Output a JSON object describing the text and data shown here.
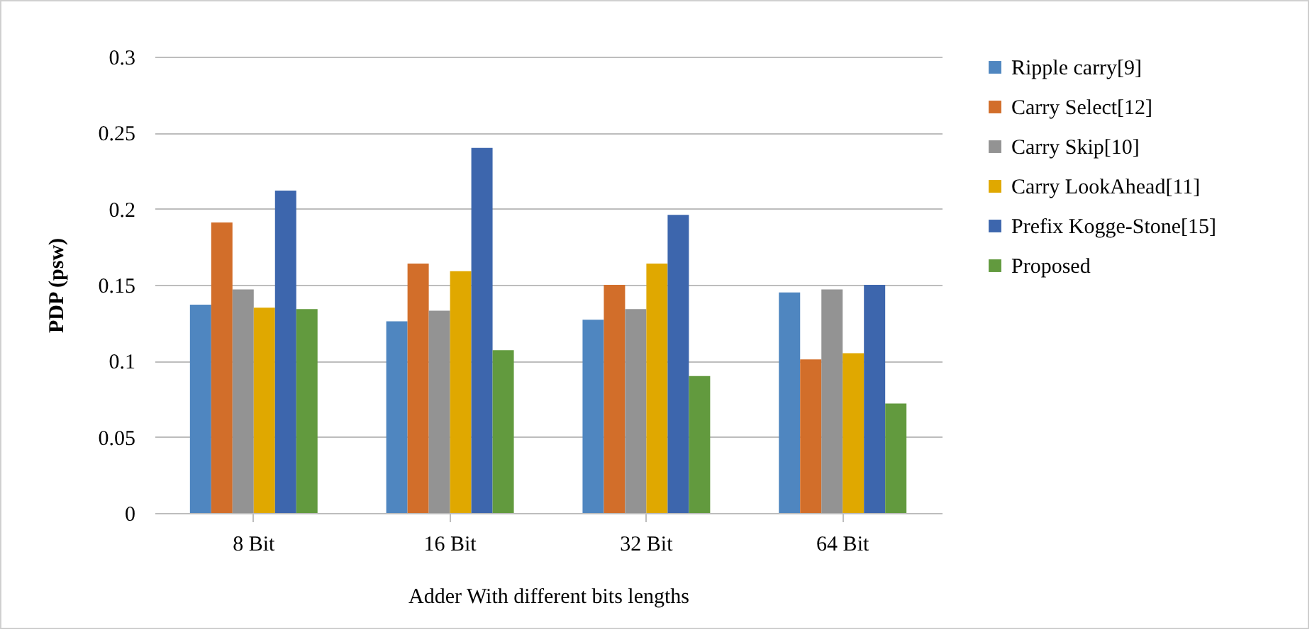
{
  "chart_data": {
    "type": "bar",
    "xlabel": "Adder With different bits lengths",
    "ylabel": "PDP (psw)",
    "categories": [
      "8 Bit",
      "16 Bit",
      "32 Bit",
      "64 Bit"
    ],
    "series": [
      {
        "name": "Ripple carry[9]",
        "color": "#4f86c0",
        "values": [
          0.137,
          0.126,
          0.127,
          0.145
        ]
      },
      {
        "name": "Carry Select[12]",
        "color": "#d26e2a",
        "values": [
          0.191,
          0.164,
          0.15,
          0.101
        ]
      },
      {
        "name": "Carry Skip[10]",
        "color": "#939393",
        "values": [
          0.147,
          0.133,
          0.134,
          0.147
        ]
      },
      {
        "name": "Carry LookAhead[11]",
        "color": "#e0a800",
        "values": [
          0.135,
          0.159,
          0.164,
          0.105
        ]
      },
      {
        "name": "Prefix Kogge-Stone[15]",
        "color": "#3d66ad",
        "values": [
          0.212,
          0.24,
          0.196,
          0.15
        ]
      },
      {
        "name": "Proposed",
        "color": "#629a3e",
        "values": [
          0.134,
          0.107,
          0.09,
          0.072
        ]
      }
    ],
    "ylim": [
      0,
      0.3
    ],
    "yticks": [
      0,
      0.05,
      0.1,
      0.15,
      0.2,
      0.25,
      0.3
    ],
    "grid": "y",
    "legend": "right"
  }
}
